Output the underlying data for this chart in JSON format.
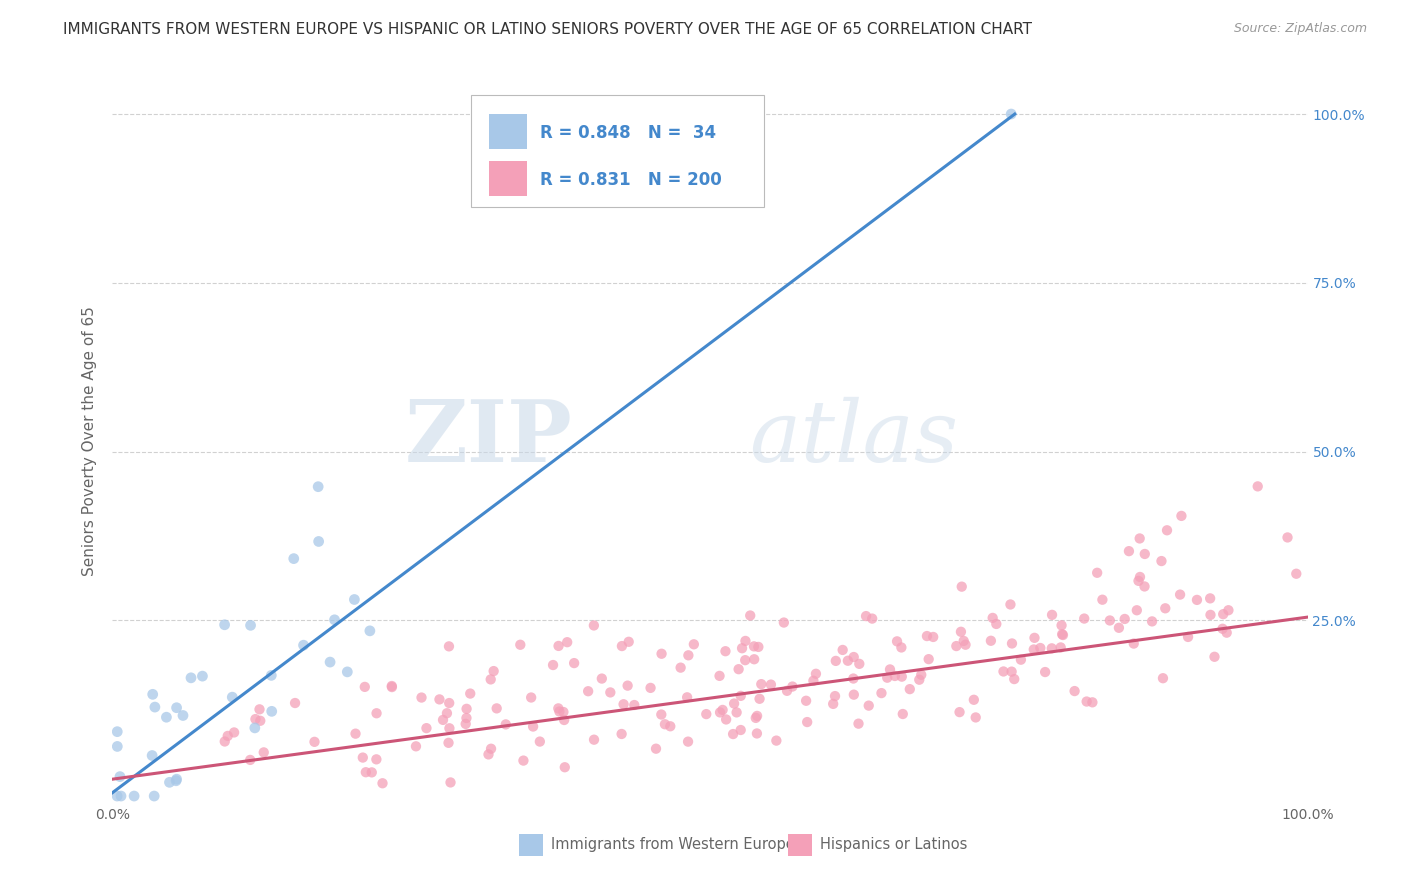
{
  "title": "IMMIGRANTS FROM WESTERN EUROPE VS HISPANIC OR LATINO SENIORS POVERTY OVER THE AGE OF 65 CORRELATION CHART",
  "source": "Source: ZipAtlas.com",
  "ylabel": "Seniors Poverty Over the Age of 65",
  "watermark_zip": "ZIP",
  "watermark_atlas": "atlas",
  "blue_R": 0.848,
  "blue_N": 34,
  "pink_R": 0.831,
  "pink_N": 200,
  "blue_color": "#a8c8e8",
  "pink_color": "#f4a0b8",
  "blue_line_color": "#4488cc",
  "pink_line_color": "#cc5577",
  "title_color": "#333333",
  "axis_color": "#666666",
  "background_color": "#ffffff",
  "grid_color": "#cccccc",
  "legend_label_blue": "Immigrants from Western Europe",
  "legend_label_pink": "Hispanics or Latinos",
  "xlim": [
    0,
    1
  ],
  "ylim": [
    -0.02,
    1.05
  ],
  "blue_line_x0": 0.0,
  "blue_line_y0": -0.005,
  "blue_line_x1": 0.755,
  "blue_line_y1": 1.0,
  "pink_line_x0": 0.0,
  "pink_line_y0": 0.015,
  "pink_line_x1": 1.0,
  "pink_line_y1": 0.255
}
